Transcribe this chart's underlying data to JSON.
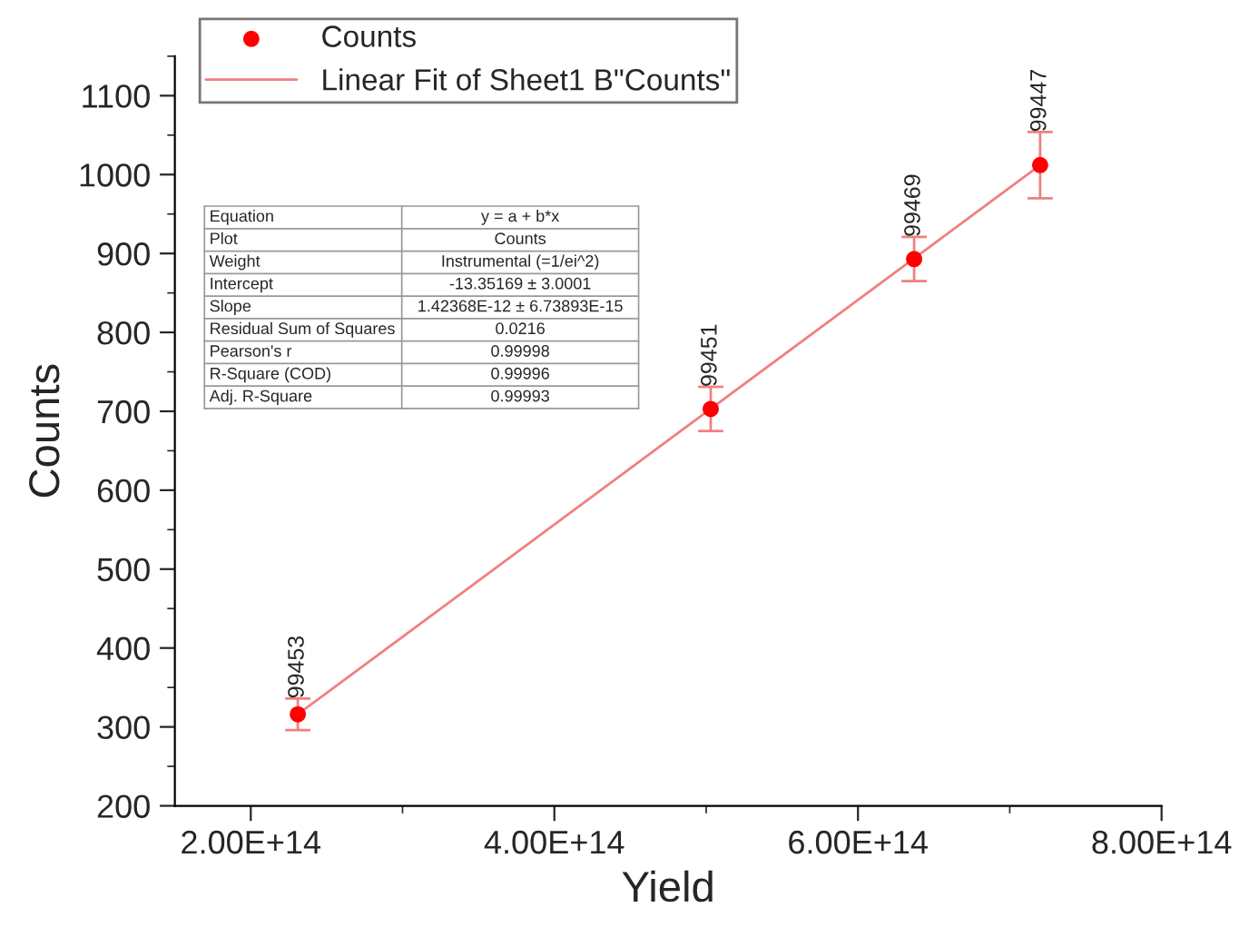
{
  "chart_data": {
    "type": "scatter",
    "xlabel": "Yield",
    "ylabel": "Counts",
    "series": [
      {
        "name": "Counts",
        "color": "#ff0000",
        "marker": "circle",
        "x": [
          231000000000000.0,
          503000000000000.0,
          637000000000000.0,
          720000000000000.0
        ],
        "values": [
          316,
          703,
          893,
          1012
        ],
        "errors": [
          20,
          28,
          28,
          42
        ]
      },
      {
        "name": "Linear Fit of Sheet1 B\"Counts\"",
        "type": "line",
        "color": "#f08080",
        "x": [
          231000000000000.0,
          720000000000000.0
        ],
        "values": [
          316,
          1012
        ]
      }
    ],
    "xlim": [
      150000000000000.0,
      800000000000000.0
    ],
    "xticks": [
      {
        "value": 200000000000000.0,
        "label": "2.00E+14"
      },
      {
        "value": 400000000000000.0,
        "label": "4.00E+14"
      },
      {
        "value": 600000000000000.0,
        "label": "6.00E+14"
      },
      {
        "value": 800000000000000.0,
        "label": "8.00E+14"
      }
    ],
    "ylim": [
      200,
      1150
    ],
    "yticks": [
      200,
      300,
      400,
      500,
      600,
      700,
      800,
      900,
      1000,
      1100
    ],
    "legend": "top left",
    "grid": false,
    "annotations": [
      {
        "text": "99453",
        "x": 231000000000000.0,
        "y": 336
      },
      {
        "text": "99451",
        "x": 503000000000000.0,
        "y": 731
      },
      {
        "text": "99469",
        "x": 637000000000000.0,
        "y": 921
      },
      {
        "text": "99447",
        "x": 720000000000000.0,
        "y": 1054
      },
      "Equation",
      "y = a + b*x",
      "Plot",
      "Counts",
      "Weight",
      "Instrumental (=1/ei^2)",
      "Intercept",
      "-13.35169 ± 3.0001",
      "Slope",
      "1.42368E-12 ± 6.73893E-15",
      "Residual Sum of Squares",
      "0.0216",
      "Pearson's r",
      "0.99998",
      "R-Square (COD)",
      "0.99996",
      "Adj. R-Square",
      "0.99993"
    ]
  }
}
